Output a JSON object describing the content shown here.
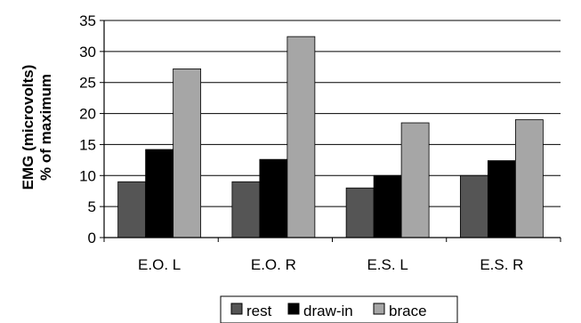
{
  "chart_data": {
    "type": "bar",
    "categories": [
      "E.O. L",
      "E.O. R",
      "E.S. L",
      "E.S. R"
    ],
    "series": [
      {
        "name": "rest",
        "values": [
          9,
          9,
          8,
          10
        ],
        "color": "#555555"
      },
      {
        "name": "draw-in",
        "values": [
          14.2,
          12.6,
          10,
          12.4
        ],
        "color": "#000000"
      },
      {
        "name": "brace",
        "values": [
          27.2,
          32.4,
          18.5,
          19
        ]
      }
    ],
    "ylabel": [
      "EMG (microvolts)",
      "% of maximum"
    ],
    "ylim": [
      0,
      35
    ],
    "yticks": [
      "0",
      "5",
      "10",
      "15",
      "20",
      "25",
      "30",
      "35"
    ],
    "grid": true,
    "legend": "bottom",
    "colors": {
      "rest": "#555555",
      "draw-in": "#000000",
      "brace": "#a6a6a6",
      "grid": "#000000"
    }
  }
}
